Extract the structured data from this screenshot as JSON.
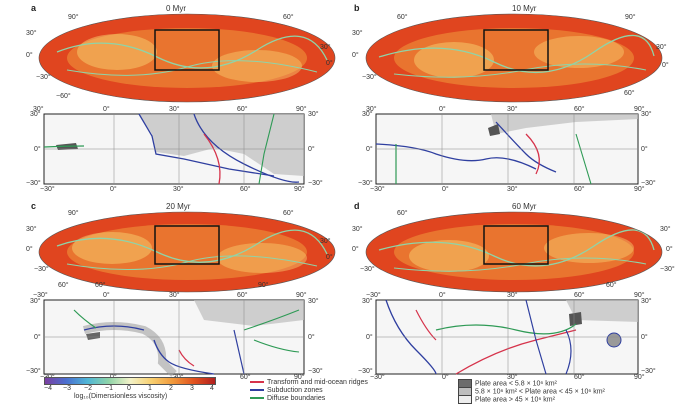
{
  "panels": [
    {
      "id": "a",
      "letter": "a",
      "title": "0 Myr",
      "map_lat": [
        "30°",
        "0°",
        "−30°",
        "−60°",
        "30°",
        "0°"
      ],
      "map_lon": [
        "90°",
        "60°"
      ],
      "box_top": [
        "30°",
        "0°",
        "30°",
        "60°",
        "90°"
      ],
      "box_lat_left": [
        "30°",
        "0°",
        "−30°"
      ],
      "box_lat_right": [
        "30°",
        "0°",
        "−30°"
      ],
      "box_bottom": [
        "−30°",
        "0°",
        "30°",
        "60°",
        "90°"
      ]
    },
    {
      "id": "b",
      "letter": "b",
      "title": "10 Myr",
      "map_lat": [
        "30°",
        "0°",
        "−30°",
        "60°",
        "30°",
        "0°"
      ],
      "map_lon": [
        "60°",
        "90°"
      ],
      "box_top": [
        "30°",
        "0°",
        "30°",
        "60°",
        "90°"
      ],
      "box_lat_left": [
        "30°",
        "0°",
        "−30°"
      ],
      "box_lat_right": [
        "30°",
        "0°",
        "−30°"
      ],
      "box_bottom": [
        "−30°",
        "0°",
        "30°",
        "60°",
        "90°"
      ]
    },
    {
      "id": "c",
      "letter": "c",
      "title": "20 Myr",
      "map_lat": [
        "30°",
        "0°",
        "−30°",
        "60°",
        "30°",
        "0°"
      ],
      "map_lon": [
        "90°",
        "60°",
        "60°",
        "90°"
      ],
      "box_top": [
        "−30°",
        "0°",
        "30°",
        "60°",
        "90°"
      ],
      "box_lat_left": [
        "30°",
        "0°",
        "−30°"
      ],
      "box_lat_right": [
        "30°",
        "0°",
        "−30°"
      ],
      "box_bottom": [
        "−30°",
        "0°",
        "30°",
        "60°",
        "90°"
      ]
    },
    {
      "id": "d",
      "letter": "d",
      "title": "60 Myr",
      "map_lat": [
        "30°",
        "0°",
        "−30°",
        "30°",
        "0°",
        "−30°"
      ],
      "map_lon": [
        "60°",
        "60°"
      ],
      "box_top": [
        "−30°",
        "0°",
        "30°",
        "60°",
        "90°"
      ],
      "box_lat_left": [
        "30°",
        "0°",
        "−30°"
      ],
      "box_lat_right": [
        "30°",
        "0°",
        "−30°"
      ],
      "box_bottom": [
        "−30°",
        "0°",
        "30°",
        "60°",
        "90°"
      ]
    }
  ],
  "colorbar": {
    "ticks": [
      "−4",
      "−3",
      "−2",
      "−1",
      "0",
      "1",
      "2",
      "3",
      "4"
    ],
    "label": "log₁₀(Dimensionless viscosity)",
    "colors": [
      "#7b3fa0",
      "#4a6fd0",
      "#4fb6d6",
      "#8fd4a8",
      "#f2f2c8",
      "#f8d070",
      "#f19a3c",
      "#e2531f",
      "#b21f1f"
    ]
  },
  "legend_lines": [
    {
      "label": "Transform and mid-ocean ridges",
      "color": "#d6334b"
    },
    {
      "label": "Subduction zones",
      "color": "#2f3fa0"
    },
    {
      "label": "Diffuse boundaries",
      "color": "#2e9a55"
    }
  ],
  "legend_areas": [
    {
      "label": "Plate area < 5.8 × 10⁶ km²",
      "fill": "#6c6c6c"
    },
    {
      "label": "5.8 × 10⁶ km² < Plate area < 45 × 10⁶ km²",
      "fill": "#bdbdbd"
    },
    {
      "label": "Plate area > 45 × 10⁶ km²",
      "fill": "#ededed"
    }
  ]
}
